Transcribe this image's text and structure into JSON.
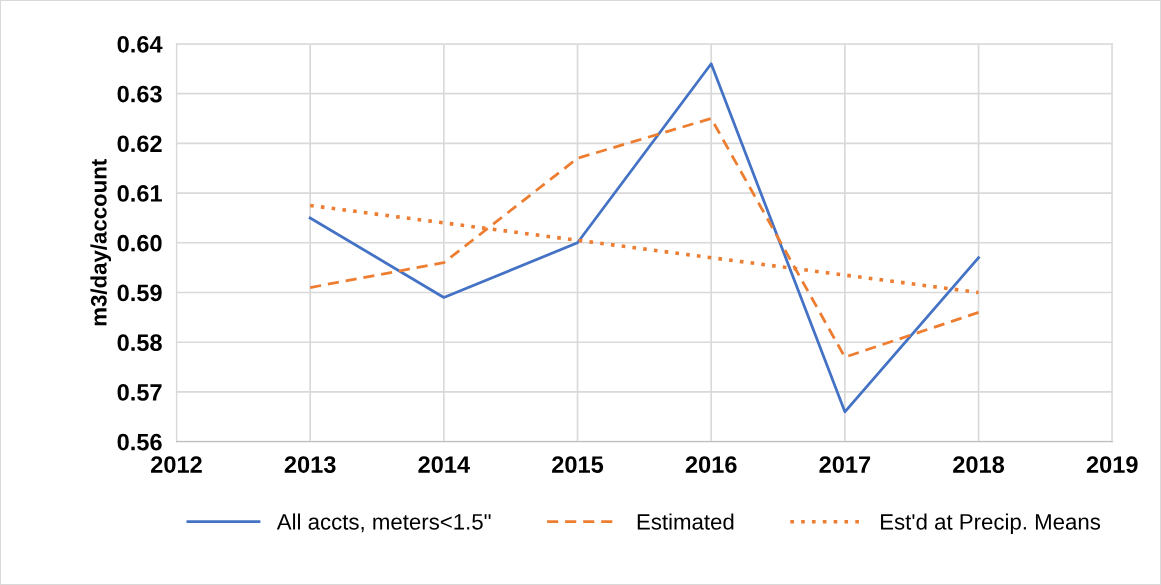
{
  "chart_data": {
    "type": "line",
    "ylabel": "m3/day/account",
    "x": [
      2013,
      2014,
      2015,
      2016,
      2017,
      2018
    ],
    "series": [
      {
        "name": "All accts, meters<1.5\"",
        "color": "#4472c4",
        "line_style": "solid",
        "values": [
          0.605,
          0.589,
          0.6,
          0.636,
          0.566,
          0.597
        ]
      },
      {
        "name": "Estimated",
        "color": "#ed7d31",
        "line_style": "dashed",
        "values": [
          0.591,
          0.596,
          0.617,
          0.625,
          0.577,
          0.586
        ]
      },
      {
        "name": "Est'd at Precip. Means",
        "color": "#ed7d31",
        "line_style": "dotted",
        "values": [
          0.6075,
          0.604,
          0.6005,
          0.597,
          0.5935,
          0.59
        ]
      }
    ],
    "xlim": [
      2012,
      2019
    ],
    "xticks": [
      2012,
      2013,
      2014,
      2015,
      2016,
      2017,
      2018,
      2019
    ],
    "ylim": [
      0.56,
      0.64
    ],
    "yticks": [
      {
        "value": 0.56,
        "label": "0.56"
      },
      {
        "value": 0.57,
        "label": "0.57"
      },
      {
        "value": 0.58,
        "label": "0.58"
      },
      {
        "value": 0.59,
        "label": "0.59"
      },
      {
        "value": 0.6,
        "label": "0.60"
      },
      {
        "value": 0.61,
        "label": "0.61"
      },
      {
        "value": 0.62,
        "label": "0.62"
      },
      {
        "value": 0.63,
        "label": "0.63"
      },
      {
        "value": 0.64,
        "label": "0.64"
      }
    ],
    "grid": true,
    "legend": "bottom",
    "marker": "none"
  }
}
